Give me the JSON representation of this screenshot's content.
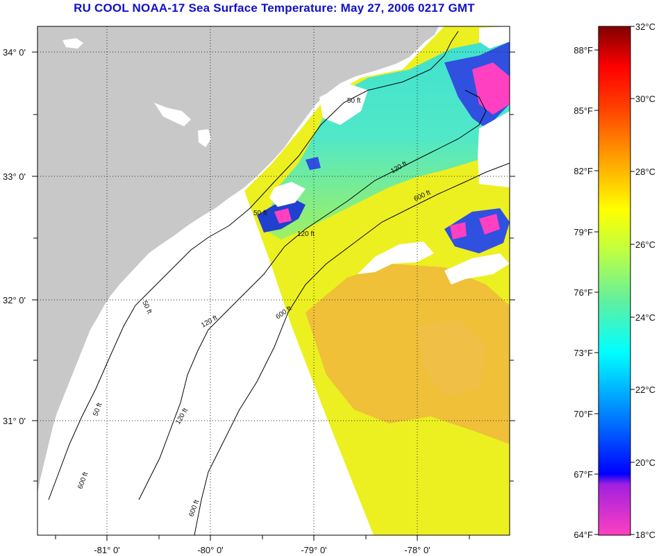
{
  "title": "RU COOL  NOAA-17  Sea Surface Temperature:  May 27, 2006 0217 GMT",
  "map": {
    "lat_ticks": [
      "34° 0'",
      "33° 0'",
      "32° 0'",
      "31° 0'"
    ],
    "lon_ticks": [
      "-81° 0'",
      "-80° 0'",
      "-79° 0'",
      "-78° 0'"
    ],
    "contour_labels": [
      "50 ft",
      "120 ft",
      "600 ft"
    ],
    "colors": {
      "land": "#c8c8c8",
      "cloud": "#ffffff",
      "contour": "#000000"
    }
  },
  "colorbar": {
    "fahrenheit": [
      "88°F",
      "85°F",
      "82°F",
      "79°F",
      "76°F",
      "73°F",
      "70°F",
      "67°F",
      "64°F"
    ],
    "celsius": [
      "32°C",
      "30°C",
      "28°C",
      "26°C",
      "24°C",
      "22°C",
      "20°C",
      "18°C"
    ],
    "stops": [
      "#ff40c0",
      "#8020e0",
      "#0000ff",
      "#0080ff",
      "#00ffff",
      "#80ff80",
      "#ffff00",
      "#ffa000",
      "#ff4000",
      "#ff0000",
      "#800000"
    ]
  }
}
